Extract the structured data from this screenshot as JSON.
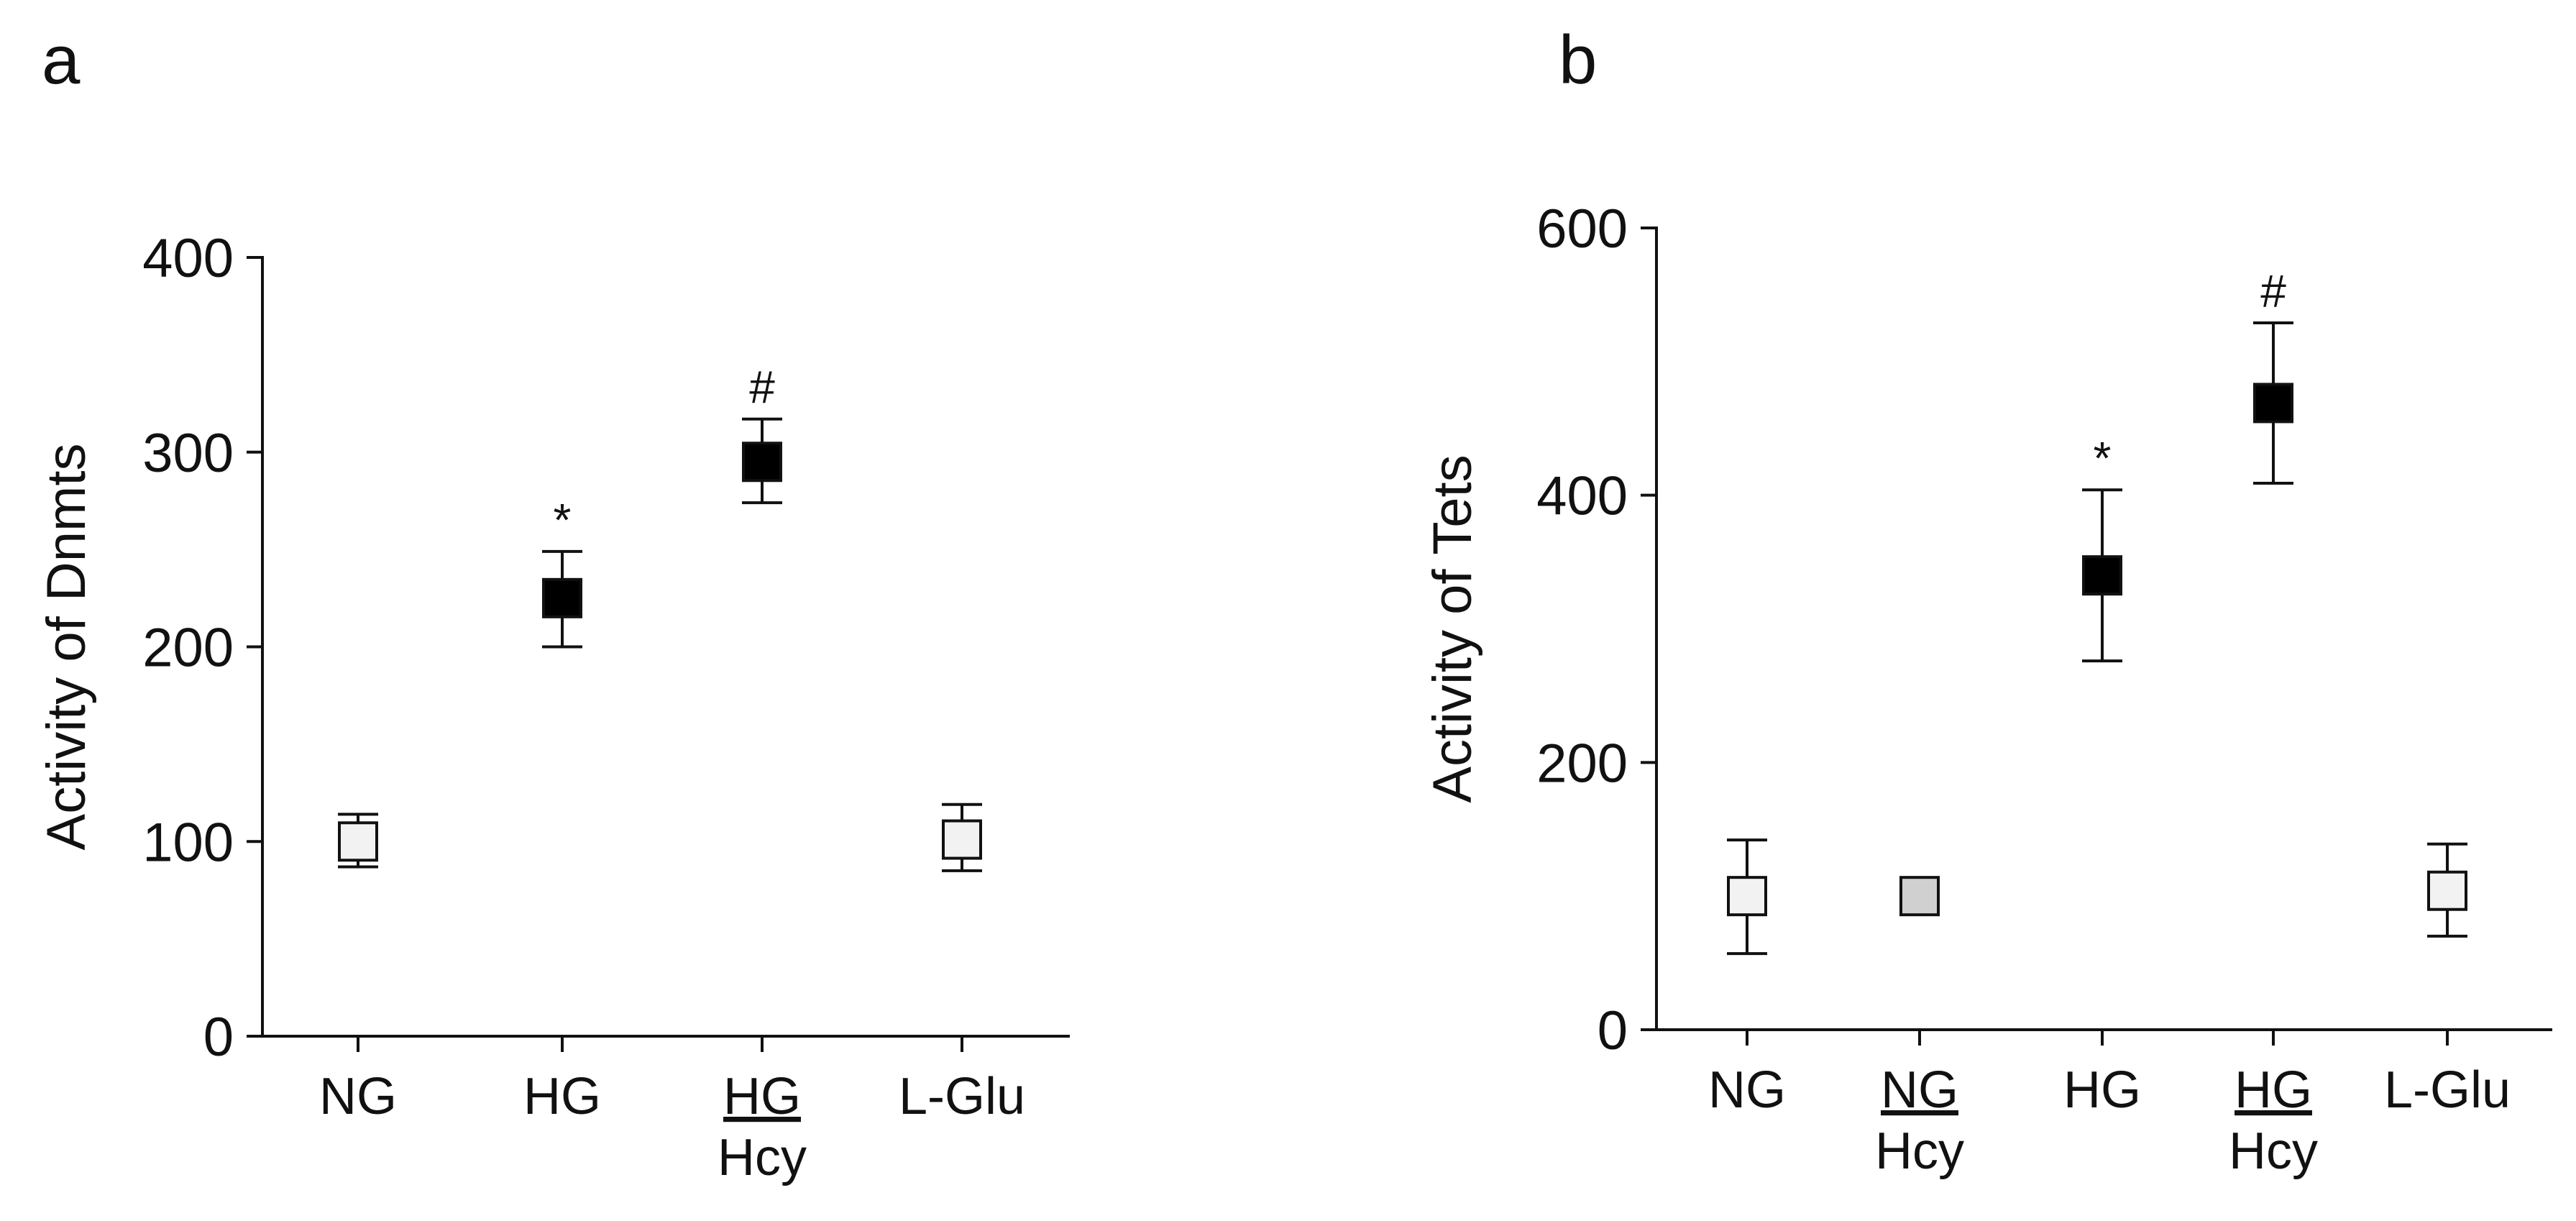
{
  "chart_data": [
    {
      "type": "scatter",
      "panel_label": "a",
      "ylabel": "Activity of Dnmts",
      "ylim": [
        0,
        400
      ],
      "yticks": [
        0,
        100,
        200,
        300,
        400
      ],
      "categories": [
        {
          "line1": "NG",
          "line2": ""
        },
        {
          "line1": "HG",
          "line2": ""
        },
        {
          "line1": "HG",
          "line2": "Hcy"
        },
        {
          "line1": "L-Glu",
          "line2": ""
        }
      ],
      "underline_line1": [
        false,
        false,
        true,
        false
      ],
      "points": [
        {
          "mean": 100,
          "lower": 87,
          "upper": 114,
          "fill": "#f2f2f2",
          "sig": ""
        },
        {
          "mean": 225,
          "lower": 200,
          "upper": 249,
          "fill": "#000000",
          "sig": "*"
        },
        {
          "mean": 295,
          "lower": 274,
          "upper": 317,
          "fill": "#000000",
          "sig": "#"
        },
        {
          "mean": 101,
          "lower": 85,
          "upper": 119,
          "fill": "#f2f2f2",
          "sig": ""
        }
      ],
      "grid": false,
      "legend": "none"
    },
    {
      "type": "scatter",
      "panel_label": "b",
      "ylabel": "Activity of Tets",
      "ylim": [
        0,
        600
      ],
      "yticks": [
        0,
        200,
        400,
        600
      ],
      "categories": [
        {
          "line1": "NG",
          "line2": ""
        },
        {
          "line1": "NG",
          "line2": "Hcy"
        },
        {
          "line1": "HG",
          "line2": ""
        },
        {
          "line1": "HG",
          "line2": "Hcy"
        },
        {
          "line1": "L-Glu",
          "line2": ""
        }
      ],
      "underline_line1": [
        false,
        true,
        false,
        true,
        false
      ],
      "points": [
        {
          "mean": 100,
          "lower": 57,
          "upper": 142,
          "fill": "#f2f2f2",
          "sig": ""
        },
        {
          "mean": 100,
          "lower": 100,
          "upper": 100,
          "fill": "#d0d0d0",
          "sig": ""
        },
        {
          "mean": 340,
          "lower": 276,
          "upper": 404,
          "fill": "#000000",
          "sig": "*"
        },
        {
          "mean": 469,
          "lower": 409,
          "upper": 529,
          "fill": "#000000",
          "sig": "#"
        },
        {
          "mean": 104,
          "lower": 70,
          "upper": 139,
          "fill": "#f2f2f2",
          "sig": ""
        }
      ],
      "grid": false,
      "legend": "none"
    }
  ]
}
